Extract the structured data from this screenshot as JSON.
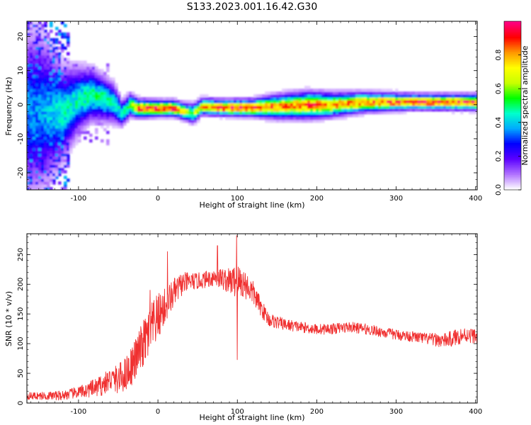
{
  "figure_title": "S133.2023.001.16.42.G30",
  "chart_data": [
    {
      "type": "heatmap",
      "title": "S133.2023.001.16.42.G30",
      "xlabel": "Height of straight line (km)",
      "ylabel": "Frequency (Hz)",
      "xlim": [
        -165,
        402
      ],
      "ylim": [
        -25,
        24.5
      ],
      "xticks": [
        -100,
        0,
        100,
        200,
        300,
        400
      ],
      "yticks": [
        -20,
        -10,
        0,
        10,
        20
      ],
      "colorbar": {
        "label": "Normalized spectral amplitude",
        "range": [
          0,
          1
        ],
        "ticks": [
          0.0,
          0.2,
          0.4,
          0.6,
          0.8
        ],
        "tick_labels": [
          "0.0",
          "0.2",
          "0.4",
          "0.6",
          "0.8"
        ],
        "colors": [
          "#ffffff",
          "#b070ff",
          "#5a00ff",
          "#0000ff",
          "#00aaff",
          "#00ffcc",
          "#00ff00",
          "#c8ff00",
          "#ffff00",
          "#ff9900",
          "#ff0000",
          "#ff0080"
        ]
      },
      "ridge": [
        {
          "x": -150,
          "f": -2.0,
          "w": 12.0,
          "a": 0.35
        },
        {
          "x": -120,
          "f": -2.5,
          "w": 7.0,
          "a": 0.45
        },
        {
          "x": -100,
          "f": 1.5,
          "w": 5.0,
          "a": 0.45
        },
        {
          "x": -85,
          "f": 3.0,
          "w": 4.0,
          "a": 0.5
        },
        {
          "x": -70,
          "f": 2.0,
          "w": 3.5,
          "a": 0.5
        },
        {
          "x": -55,
          "f": 0.5,
          "w": 3.0,
          "a": 0.45
        },
        {
          "x": -45,
          "f": -2.5,
          "w": 2.0,
          "a": 0.45
        },
        {
          "x": -35,
          "f": 0.0,
          "w": 1.8,
          "a": 0.55
        },
        {
          "x": -25,
          "f": -1.0,
          "w": 1.4,
          "a": 0.9
        },
        {
          "x": 0,
          "f": -1.0,
          "w": 1.2,
          "a": 0.95
        },
        {
          "x": 20,
          "f": -1.0,
          "w": 1.2,
          "a": 0.95
        },
        {
          "x": 35,
          "f": -2.0,
          "w": 1.3,
          "a": 0.7
        },
        {
          "x": 45,
          "f": -2.5,
          "w": 1.5,
          "a": 0.6
        },
        {
          "x": 55,
          "f": -0.5,
          "w": 1.3,
          "a": 0.75
        },
        {
          "x": 80,
          "f": -0.8,
          "w": 1.2,
          "a": 0.95
        },
        {
          "x": 120,
          "f": -0.8,
          "w": 1.3,
          "a": 0.95
        },
        {
          "x": 150,
          "f": -0.5,
          "w": 1.8,
          "a": 0.8
        },
        {
          "x": 190,
          "f": 0.0,
          "w": 2.0,
          "a": 0.9
        },
        {
          "x": 220,
          "f": 0.0,
          "w": 1.8,
          "a": 0.8
        },
        {
          "x": 260,
          "f": 0.8,
          "w": 1.5,
          "a": 0.85
        },
        {
          "x": 320,
          "f": 0.9,
          "w": 1.2,
          "a": 0.9
        },
        {
          "x": 402,
          "f": 0.8,
          "w": 1.2,
          "a": 0.9
        }
      ]
    },
    {
      "type": "line",
      "xlabel": "Height of straight line (km)",
      "ylabel": "SNR (10 * v/v)",
      "xlim": [
        -165,
        402
      ],
      "ylim": [
        0,
        285
      ],
      "xticks": [
        -100,
        0,
        100,
        200,
        300,
        400
      ],
      "yticks": [
        0,
        50,
        100,
        150,
        200,
        250
      ],
      "line_color": "#f03030",
      "x": [
        -165,
        -140,
        -120,
        -100,
        -80,
        -70,
        -60,
        -50,
        -40,
        -30,
        -20,
        -10,
        0,
        10,
        20,
        30,
        40,
        50,
        60,
        70,
        80,
        90,
        100,
        110,
        120,
        130,
        140,
        160,
        180,
        200,
        220,
        240,
        260,
        280,
        300,
        320,
        340,
        360,
        370,
        380,
        390,
        402
      ],
      "y": [
        12,
        12,
        13,
        18,
        25,
        30,
        40,
        40,
        50,
        70,
        95,
        120,
        145,
        165,
        185,
        200,
        205,
        205,
        208,
        212,
        210,
        205,
        205,
        200,
        185,
        160,
        140,
        132,
        128,
        124,
        125,
        128,
        125,
        120,
        115,
        112,
        108,
        105,
        108,
        113,
        115,
        112
      ],
      "noise": [
        6,
        7,
        8,
        10,
        15,
        18,
        20,
        25,
        30,
        35,
        40,
        45,
        40,
        30,
        25,
        20,
        15,
        14,
        14,
        16,
        18,
        22,
        30,
        25,
        20,
        15,
        12,
        10,
        9,
        9,
        9,
        9,
        9,
        9,
        9,
        9,
        10,
        12,
        14,
        14,
        13,
        12
      ],
      "spikes": [
        {
          "x": -10,
          "y": 190
        },
        {
          "x": 12,
          "y": 255
        },
        {
          "x": 75,
          "y": 265
        },
        {
          "x": 99,
          "y": 282
        },
        {
          "x": 100,
          "y": 73
        }
      ]
    }
  ]
}
